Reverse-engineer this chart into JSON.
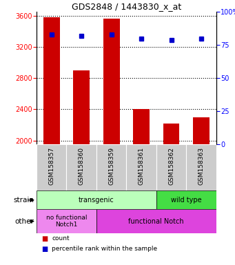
{
  "title": "GDS2848 / 1443830_x_at",
  "samples": [
    "GSM158357",
    "GSM158360",
    "GSM158359",
    "GSM158361",
    "GSM158362",
    "GSM158363"
  ],
  "counts": [
    3580,
    2900,
    3560,
    2400,
    2220,
    2300
  ],
  "percentiles": [
    83,
    82,
    83,
    80,
    79,
    80
  ],
  "ylim_left": [
    1950,
    3650
  ],
  "ylim_right": [
    0,
    100
  ],
  "yticks_left": [
    2000,
    2400,
    2800,
    3200,
    3600
  ],
  "yticks_right": [
    0,
    25,
    50,
    75,
    100
  ],
  "bar_color": "#cc0000",
  "dot_color": "#0000cc",
  "transgenic_color": "#bbffbb",
  "wildtype_color": "#44dd44",
  "nofn_color": "#ee88ee",
  "fn_color": "#dd44dd",
  "xtick_bg": "#cccccc",
  "strain_row_label": "strain",
  "other_row_label": "other",
  "legend_count": "count",
  "legend_pct": "percentile rank within the sample"
}
